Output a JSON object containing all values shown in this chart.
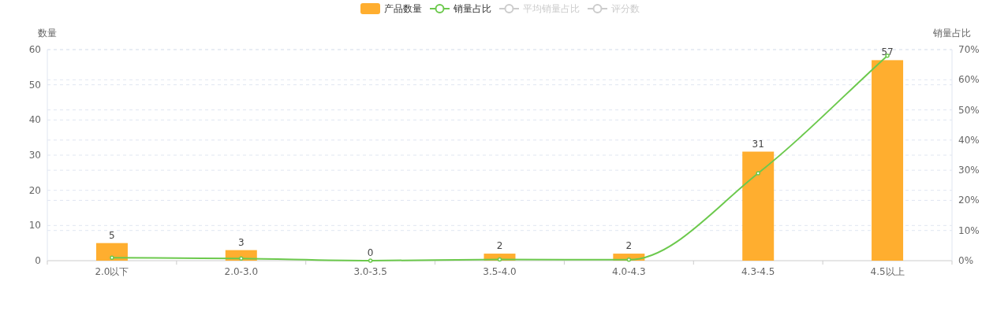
{
  "chart_data": {
    "type": "bar",
    "categories": [
      "2.0以下",
      "2.0-3.0",
      "3.0-3.5",
      "3.5-4.0",
      "4.0-4.3",
      "4.3-4.5",
      "4.5以上"
    ],
    "ylabel": "数量",
    "y2label": "销量占比",
    "series": [
      {
        "name": "产品数量",
        "color": "#ffae2f",
        "values": [
          5,
          3,
          0,
          2,
          2,
          31,
          57
        ],
        "value_labels": [
          "5",
          "3",
          "0",
          "2",
          "2",
          "31",
          "57"
        ]
      },
      {
        "name": "销量占比",
        "type": "line",
        "axis": "y2",
        "color": "#6cc94d",
        "values": [
          1,
          0.7,
          0,
          0.4,
          0.3,
          29,
          68
        ]
      },
      {
        "name": "平均销量占比",
        "type": "line",
        "axis": "y2",
        "color": "#cccccc",
        "values": [
          null,
          null,
          null,
          null,
          null,
          null,
          null
        ]
      },
      {
        "name": "评分数",
        "type": "line",
        "axis": "y2",
        "color": "#cccccc",
        "values": [
          null,
          null,
          null,
          null,
          null,
          null,
          null
        ]
      }
    ],
    "ylim": [
      0,
      60
    ],
    "yticks": [
      0,
      10,
      20,
      30,
      40,
      50,
      60
    ],
    "y2lim": [
      0,
      70
    ],
    "y2ticks": [
      {
        "value": 0,
        "label": "0%"
      },
      {
        "value": 10,
        "label": "10%"
      },
      {
        "value": 20,
        "label": "20%"
      },
      {
        "value": 30,
        "label": "30%"
      },
      {
        "value": 40,
        "label": "40%"
      },
      {
        "value": 50,
        "label": "50%"
      },
      {
        "value": 60,
        "label": "60%"
      },
      {
        "value": 70,
        "label": "70%"
      }
    ],
    "grid": true,
    "legend": "top",
    "marker": "circle",
    "line_style": "solid"
  }
}
